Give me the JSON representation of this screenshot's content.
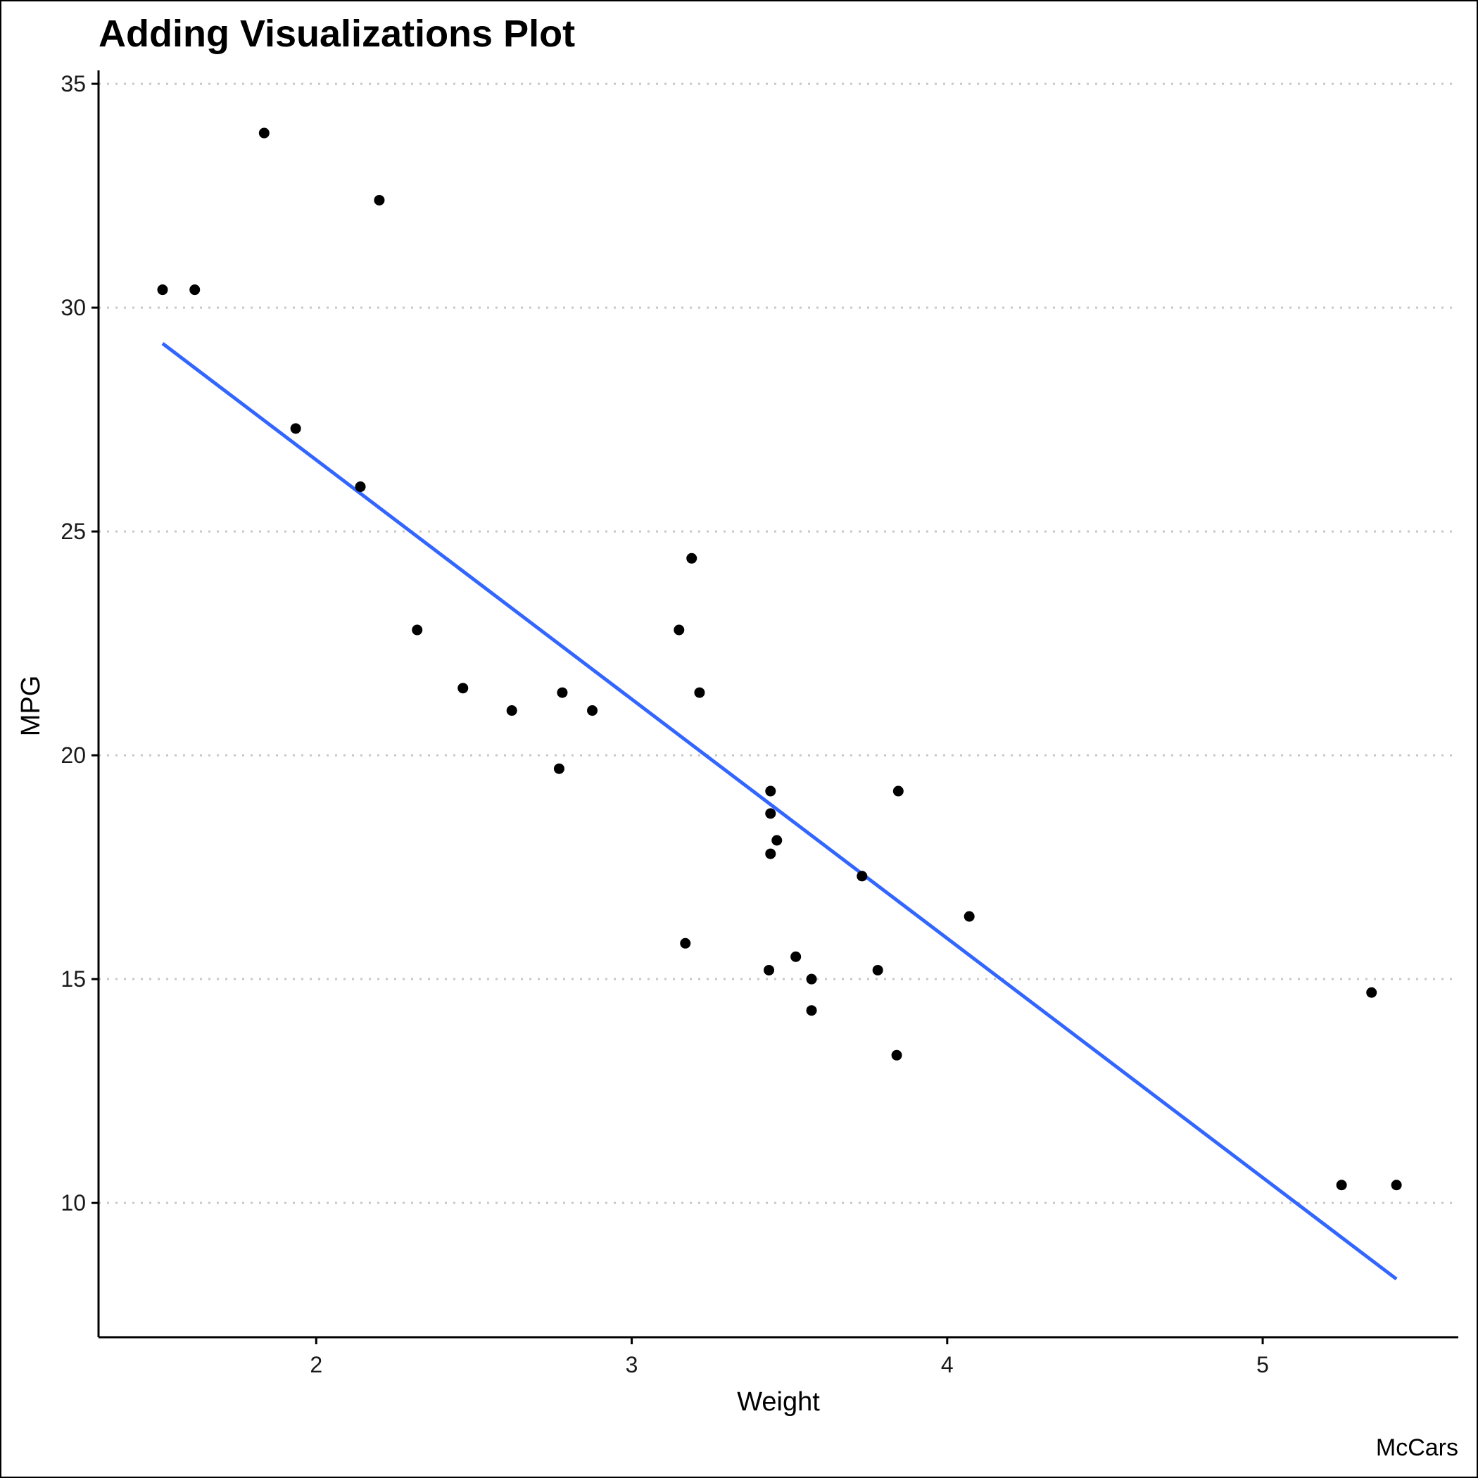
{
  "chart_data": {
    "type": "scatter",
    "title": "Adding Visualizations Plot",
    "xlabel": "Weight",
    "ylabel": "MPG",
    "caption": "McCars",
    "xlim": [
      1.31,
      5.62
    ],
    "ylim": [
      7.0,
      35.3
    ],
    "x_ticks": [
      2,
      3,
      4,
      5
    ],
    "y_ticks": [
      10,
      15,
      20,
      25,
      30,
      35
    ],
    "grid": "horizontal-dotted",
    "point_color": "#000000",
    "line_color": "#3366FF",
    "points": [
      {
        "x": 1.513,
        "y": 30.4
      },
      {
        "x": 1.615,
        "y": 30.4
      },
      {
        "x": 1.835,
        "y": 33.9
      },
      {
        "x": 1.935,
        "y": 27.3
      },
      {
        "x": 2.14,
        "y": 26.0
      },
      {
        "x": 2.2,
        "y": 32.4
      },
      {
        "x": 2.32,
        "y": 22.8
      },
      {
        "x": 2.465,
        "y": 21.5
      },
      {
        "x": 2.62,
        "y": 21.0
      },
      {
        "x": 2.77,
        "y": 19.7
      },
      {
        "x": 2.78,
        "y": 21.4
      },
      {
        "x": 2.875,
        "y": 21.0
      },
      {
        "x": 3.15,
        "y": 22.8
      },
      {
        "x": 3.17,
        "y": 15.8
      },
      {
        "x": 3.19,
        "y": 24.4
      },
      {
        "x": 3.215,
        "y": 21.4
      },
      {
        "x": 3.435,
        "y": 15.2
      },
      {
        "x": 3.44,
        "y": 18.7
      },
      {
        "x": 3.44,
        "y": 19.2
      },
      {
        "x": 3.44,
        "y": 17.8
      },
      {
        "x": 3.46,
        "y": 18.1
      },
      {
        "x": 3.52,
        "y": 15.5
      },
      {
        "x": 3.57,
        "y": 15.0
      },
      {
        "x": 3.57,
        "y": 14.3
      },
      {
        "x": 3.73,
        "y": 17.3
      },
      {
        "x": 3.78,
        "y": 15.2
      },
      {
        "x": 3.84,
        "y": 13.3
      },
      {
        "x": 3.845,
        "y": 19.2
      },
      {
        "x": 4.07,
        "y": 16.4
      },
      {
        "x": 5.25,
        "y": 10.4
      },
      {
        "x": 5.345,
        "y": 14.7
      },
      {
        "x": 5.424,
        "y": 10.4
      }
    ],
    "fit_line": {
      "x": [
        1.513,
        5.424
      ],
      "y": [
        29.2,
        8.3
      ]
    }
  }
}
